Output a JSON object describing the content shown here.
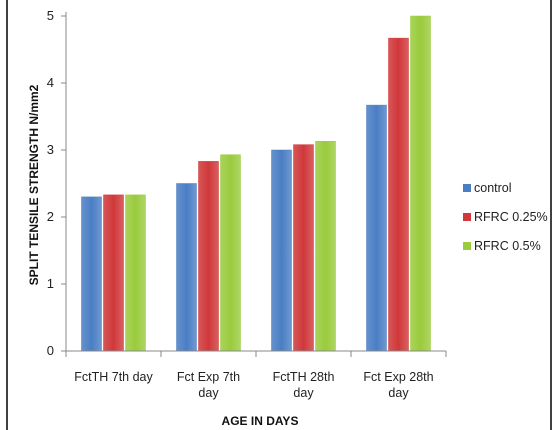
{
  "chart_data": {
    "type": "bar",
    "categories": [
      "FctTH 7th day",
      "Fct Exp 7th day",
      "FctTH 28th day",
      "Fct Exp 28th day"
    ],
    "category_lines": [
      [
        "FctTH 7th day"
      ],
      [
        "Fct Exp 7th",
        "day"
      ],
      [
        "FctTH 28th",
        "day"
      ],
      [
        "Fct Exp 28th",
        "day"
      ]
    ],
    "series": [
      {
        "name": "control",
        "color": "#4A7EC4",
        "values": [
          2.3,
          2.5,
          3.0,
          3.67
        ]
      },
      {
        "name": "RFRC 0.25%",
        "color": "#D0383A",
        "values": [
          2.33,
          2.83,
          3.08,
          4.67
        ]
      },
      {
        "name": "RFRC 0.5%",
        "color": "#9ACB3D",
        "values": [
          2.33,
          2.93,
          3.13,
          5.0
        ]
      }
    ],
    "xlabel": "AGE IN DAYS",
    "ylabel": "SPLIT TENSILE STRENGTH N/mm2",
    "ylim": [
      0,
      5
    ],
    "yticks": [
      "0",
      "1",
      "2",
      "3",
      "4",
      "5"
    ],
    "grid": false,
    "legend_position": "right"
  }
}
